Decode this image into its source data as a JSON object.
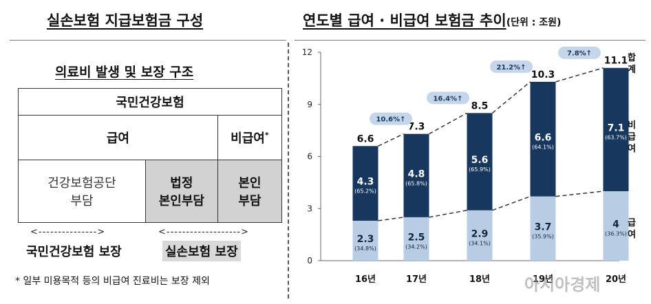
{
  "left": {
    "title": "실손보험 지급보험금 구성",
    "subtitle": "의료비 발생 및 보장 구조",
    "table": {
      "header": "국민건강보험",
      "covered": "급여",
      "noncovered": "비급여",
      "noncovered_mark": "*",
      "cell_nhis": "건강보험공단\n부담",
      "cell_statutory": "법정\n본인부담",
      "cell_self": "본인\n부담"
    },
    "arrow_left": "<--------------->",
    "arrow_right": "<------------------->",
    "label_nhis": "국민건강보험 보장",
    "label_private": "실손보험 보장",
    "footnote": "* 일부 미용목적 등의 비급여 진료비는 보장 제외"
  },
  "right": {
    "title": "연도별 급여 · 비급여 보험금 추이",
    "unit": "(단위 : 조원)"
  },
  "watermark": "아시아경제",
  "chart_data": {
    "type": "bar",
    "stacked": true,
    "categories": [
      "16년",
      "17년",
      "18년",
      "19년",
      "20년"
    ],
    "series": [
      {
        "name": "급여",
        "values": [
          2.3,
          2.5,
          2.9,
          3.7,
          4.0
        ],
        "shares": [
          "(34.8%)",
          "(34.2%)",
          "(34.1%)",
          "(35.9%)",
          "(36.3%)"
        ],
        "color": "#b8cce4"
      },
      {
        "name": "비급여",
        "values": [
          4.3,
          4.8,
          5.6,
          6.6,
          7.1
        ],
        "shares": [
          "(65.2%)",
          "(65.8%)",
          "(65.9%)",
          "(64.1%)",
          "(63.7%)"
        ],
        "color": "#17375e"
      }
    ],
    "totals": [
      6.6,
      7.3,
      8.5,
      10.3,
      11.1
    ],
    "total_label": "합계",
    "growth_labels": [
      "10.6%↑",
      "16.4%↑",
      "21.2%↑",
      "7.8%↑"
    ],
    "ylim": [
      0,
      12
    ],
    "yticks": [
      0,
      3,
      6,
      9,
      12
    ],
    "grid": false,
    "legend": "right, vertical text"
  }
}
